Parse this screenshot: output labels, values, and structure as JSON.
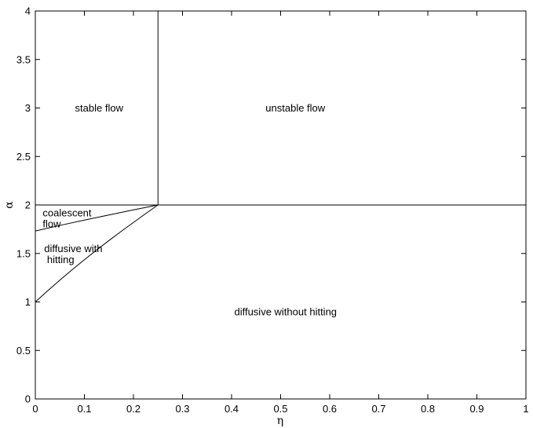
{
  "chart_data": {
    "type": "line",
    "title": "",
    "xlabel": "η",
    "ylabel": "α",
    "xlim": [
      0,
      1
    ],
    "ylim": [
      0,
      4
    ],
    "grid": false,
    "legend": "none",
    "x_ticks": [
      "0",
      "0.1",
      "0.2",
      "0.3",
      "0.4",
      "0.5",
      "0.6",
      "0.7",
      "0.8",
      "0.9",
      "1"
    ],
    "y_ticks": [
      "0",
      "0.5",
      "1",
      "1.5",
      "2",
      "2.5",
      "3",
      "3.5",
      "4"
    ],
    "x_tick_values": [
      0,
      0.1,
      0.2,
      0.3,
      0.4,
      0.5,
      0.6,
      0.7,
      0.8,
      0.9,
      1
    ],
    "y_tick_values": [
      0,
      0.5,
      1,
      1.5,
      2,
      2.5,
      3,
      3.5,
      4
    ],
    "series": [
      {
        "x": [
          0.25,
          0.25
        ],
        "y": [
          2,
          4
        ]
      },
      {
        "x": [
          0,
          1
        ],
        "y": [
          2,
          2
        ]
      },
      {
        "x": [
          0,
          0.05,
          0.1,
          0.15,
          0.2,
          0.25
        ],
        "y": [
          1.732,
          1.789,
          1.844,
          1.897,
          1.949,
          2.0
        ]
      },
      {
        "x": [
          0,
          0.025,
          0.05,
          0.075,
          0.1,
          0.125,
          0.15,
          0.175,
          0.2,
          0.225,
          0.25
        ],
        "y": [
          1.0,
          1.114,
          1.225,
          1.332,
          1.435,
          1.536,
          1.633,
          1.728,
          1.82,
          1.911,
          2.0
        ]
      }
    ],
    "annotations": [
      {
        "lines": [
          "stable flow"
        ],
        "x": 0.13,
        "y": 3.0,
        "anchor": "middle"
      },
      {
        "lines": [
          "unstable flow"
        ],
        "x": 0.53,
        "y": 3.0,
        "anchor": "middle"
      },
      {
        "lines": [
          "coalescent",
          "flow"
        ],
        "x": 0.015,
        "y": 1.92,
        "anchor": "start"
      },
      {
        "lines": [
          "diffusive with",
          " hitting"
        ],
        "x": 0.018,
        "y": 1.55,
        "anchor": "start"
      },
      {
        "lines": [
          "diffusive without hitting"
        ],
        "x": 0.51,
        "y": 0.9,
        "anchor": "middle"
      }
    ]
  }
}
